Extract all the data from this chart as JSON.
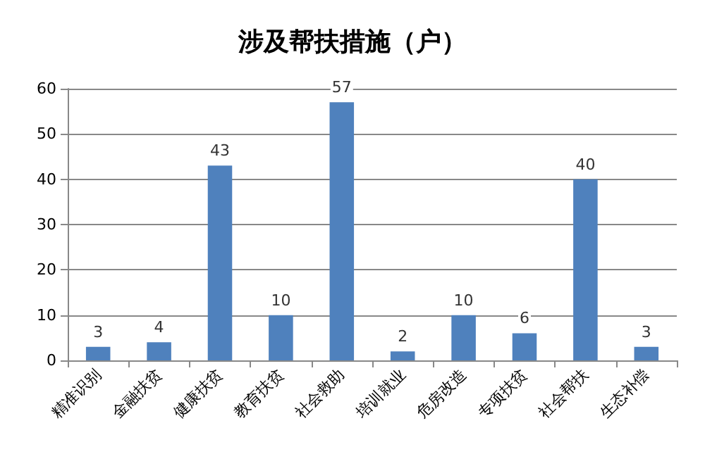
{
  "chart_data": {
    "type": "bar",
    "title": "涉及帮扶措施（户）",
    "categories": [
      "精准识别",
      "金融扶贫",
      "健康扶贫",
      "教育扶贫",
      "社会救助",
      "培训就业",
      "危房改造",
      "专项扶贫",
      "社会帮扶",
      "生态补偿"
    ],
    "values": [
      3,
      4,
      43,
      10,
      57,
      2,
      10,
      6,
      40,
      3
    ],
    "color": "#4f81bd",
    "ylim": [
      0,
      60
    ],
    "yticks": [
      0,
      10,
      20,
      30,
      40,
      50,
      60
    ],
    "grid": "y",
    "data_labels": true
  }
}
